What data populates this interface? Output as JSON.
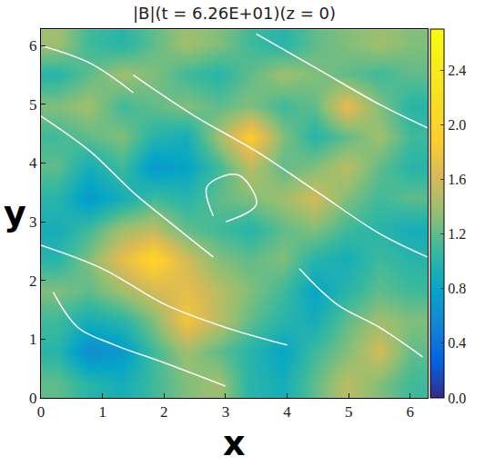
{
  "chart_data": {
    "type": "heatmap",
    "title": "|B|(t = 6.26E+01)(z = 0)",
    "x_label": "x",
    "y_label": "y",
    "xlim": [
      0,
      6.2832
    ],
    "ylim": [
      0,
      6.2832
    ],
    "xticks": [
      0,
      1,
      2,
      3,
      4,
      5,
      6
    ],
    "yticks": [
      0,
      1,
      2,
      3,
      4,
      5,
      6
    ],
    "grid": false,
    "x": [
      0.26,
      0.79,
      1.31,
      1.83,
      2.36,
      2.88,
      3.4,
      3.93,
      4.45,
      4.97,
      5.5,
      6.02
    ],
    "y": [
      0.26,
      0.79,
      1.31,
      1.83,
      2.36,
      2.88,
      3.4,
      3.93,
      4.45,
      4.97,
      5.5,
      6.02
    ],
    "cells": [
      [
        1.2,
        1.0,
        0.9,
        1.1,
        1.3,
        1.4,
        1.0,
        0.9,
        1.2,
        1.5,
        1.3,
        1.1
      ],
      [
        1.0,
        0.6,
        0.7,
        1.1,
        1.4,
        1.2,
        1.0,
        0.8,
        1.1,
        1.3,
        1.6,
        1.2
      ],
      [
        1.1,
        0.9,
        1.0,
        1.3,
        1.8,
        1.5,
        1.2,
        1.0,
        0.9,
        1.2,
        1.4,
        1.3
      ],
      [
        1.3,
        1.2,
        1.4,
        1.6,
        1.7,
        1.5,
        1.3,
        1.1,
        0.8,
        1.0,
        1.2,
        1.1
      ],
      [
        1.0,
        1.3,
        1.7,
        2.0,
        1.6,
        1.3,
        1.2,
        1.3,
        1.0,
        0.9,
        1.1,
        1.0
      ],
      [
        0.9,
        1.1,
        1.4,
        1.5,
        1.2,
        1.1,
        1.0,
        1.2,
        1.3,
        1.1,
        1.0,
        0.9
      ],
      [
        1.0,
        0.7,
        0.9,
        1.1,
        1.0,
        1.2,
        1.3,
        1.4,
        1.6,
        1.3,
        1.1,
        1.2
      ],
      [
        1.2,
        0.9,
        1.1,
        0.7,
        0.8,
        1.1,
        1.5,
        1.2,
        1.3,
        1.5,
        1.2,
        1.0
      ],
      [
        1.1,
        1.2,
        1.3,
        1.0,
        0.9,
        1.4,
        1.9,
        1.3,
        1.0,
        1.2,
        1.4,
        1.1
      ],
      [
        1.3,
        1.4,
        1.1,
        1.2,
        1.3,
        1.2,
        1.3,
        1.1,
        1.2,
        1.7,
        1.3,
        1.0
      ],
      [
        1.0,
        1.2,
        1.4,
        1.3,
        1.1,
        1.0,
        1.2,
        1.4,
        1.3,
        1.2,
        1.1,
        1.2
      ],
      [
        1.4,
        1.1,
        1.0,
        1.2,
        1.4,
        1.3,
        1.1,
        1.0,
        1.2,
        1.3,
        1.4,
        1.3
      ]
    ],
    "colorbar_range": [
      0,
      2.7
    ],
    "colorbar_ticks": [
      {
        "value": 0,
        "label": "0.0"
      },
      0.4,
      0.8,
      1.2,
      1.6,
      {
        "value": 2,
        "label": "2.0"
      },
      2.4
    ],
    "field_lines": {
      "color": "#ffffff",
      "lines": [
        {
          "x": [
            0,
            1,
            2,
            3,
            4
          ],
          "y": [
            2.6,
            2.2,
            1.6,
            1.2,
            0.9
          ]
        },
        {
          "x": [
            1.5,
            2.5,
            3.5,
            4.5,
            5.5,
            6.28
          ],
          "y": [
            5.5,
            4.8,
            4.2,
            3.5,
            2.8,
            2.4
          ]
        },
        {
          "x": [
            3.5,
            4.5,
            5.5,
            6.28
          ],
          "y": [
            6.2,
            5.6,
            5.0,
            4.6
          ]
        },
        {
          "x": [
            0,
            0.8,
            1.5,
            2.2,
            2.8
          ],
          "y": [
            4.8,
            4.2,
            3.5,
            2.9,
            2.4
          ]
        },
        {
          "x": [
            0.2,
            0.6,
            1.2,
            2,
            3
          ],
          "y": [
            1.8,
            1.2,
            0.9,
            0.6,
            0.2
          ]
        },
        {
          "x": [
            4.2,
            4.8,
            5.5,
            6.2
          ],
          "y": [
            2.2,
            1.6,
            1.2,
            0.7
          ]
        },
        {
          "x": [
            0,
            0.8,
            1.5
          ],
          "y": [
            6.0,
            5.7,
            5.2
          ]
        },
        {
          "x": [
            3,
            3.5,
            3.2,
            2.7,
            2.8
          ],
          "y": [
            3.0,
            3.3,
            3.8,
            3.6,
            3.1
          ]
        }
      ]
    }
  }
}
